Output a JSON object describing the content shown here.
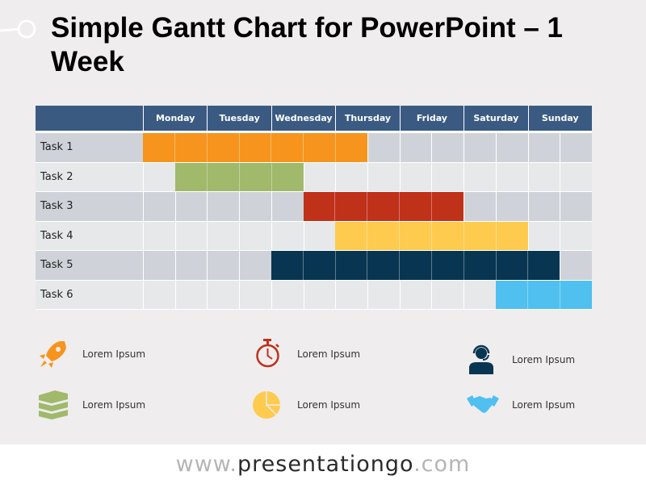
{
  "title": "Simple Gantt Chart for PowerPoint – 1 Week",
  "header": {
    "blank": "",
    "days": [
      "Monday",
      "Tuesday",
      "Wednesday",
      "Thursday",
      "Friday",
      "Saturday",
      "Sunday"
    ]
  },
  "tasks": [
    {
      "label": "Task 1",
      "start": 0,
      "end": 7,
      "color": "#f7941d"
    },
    {
      "label": "Task 2",
      "start": 1,
      "end": 5,
      "color": "#a1b96a"
    },
    {
      "label": "Task 3",
      "start": 5,
      "end": 10,
      "color": "#c0311a"
    },
    {
      "label": "Task 4",
      "start": 6,
      "end": 12,
      "color": "#ffcb4f"
    },
    {
      "label": "Task 5",
      "start": 4,
      "end": 13,
      "color": "#083652"
    },
    {
      "label": "Task 6",
      "start": 11,
      "end": 14,
      "color": "#4fc0ef"
    }
  ],
  "legend": [
    {
      "icon": "rocket-icon",
      "label": "Lorem Ipsum",
      "color": "#f7941d"
    },
    {
      "icon": "stopwatch-icon",
      "label": "Lorem Ipsum",
      "color": "#c0311a"
    },
    {
      "icon": "support-agent-icon",
      "label": "Lorem Ipsum",
      "color": "#083652"
    },
    {
      "icon": "books-icon",
      "label": "Lorem Ipsum",
      "color": "#a1b96a"
    },
    {
      "icon": "pie-chart-icon",
      "label": "Lorem Ipsum",
      "color": "#ffcb4f"
    },
    {
      "icon": "handshake-icon",
      "label": "Lorem Ipsum",
      "color": "#4fc0ef"
    }
  ],
  "footer": {
    "pre": "www.",
    "mid": "presentationgo",
    "post": ".com"
  },
  "chart_data": {
    "type": "gantt",
    "title": "Simple Gantt Chart for PowerPoint – 1 Week",
    "categories": [
      "Monday",
      "Tuesday",
      "Wednesday",
      "Thursday",
      "Friday",
      "Saturday",
      "Sunday"
    ],
    "unit": "half-day",
    "series": [
      {
        "name": "Task 1",
        "start_halfday": 0,
        "end_halfday": 7,
        "start": "Monday AM",
        "end": "Thursday AM",
        "color": "#f7941d"
      },
      {
        "name": "Task 2",
        "start_halfday": 1,
        "end_halfday": 5,
        "start": "Monday PM",
        "end": "Wednesday AM",
        "color": "#a1b96a"
      },
      {
        "name": "Task 3",
        "start_halfday": 5,
        "end_halfday": 10,
        "start": "Wednesday PM",
        "end": "Friday PM",
        "color": "#c0311a"
      },
      {
        "name": "Task 4",
        "start_halfday": 6,
        "end_halfday": 12,
        "start": "Thursday AM",
        "end": "Saturday PM",
        "color": "#ffcb4f"
      },
      {
        "name": "Task 5",
        "start_halfday": 4,
        "end_halfday": 13,
        "start": "Wednesday AM",
        "end": "Sunday AM",
        "color": "#083652"
      },
      {
        "name": "Task 6",
        "start_halfday": 11,
        "end_halfday": 14,
        "start": "Saturday PM",
        "end": "Sunday PM",
        "color": "#4fc0ef"
      }
    ],
    "legend": [
      "Lorem Ipsum",
      "Lorem Ipsum",
      "Lorem Ipsum",
      "Lorem Ipsum",
      "Lorem Ipsum",
      "Lorem Ipsum"
    ]
  }
}
